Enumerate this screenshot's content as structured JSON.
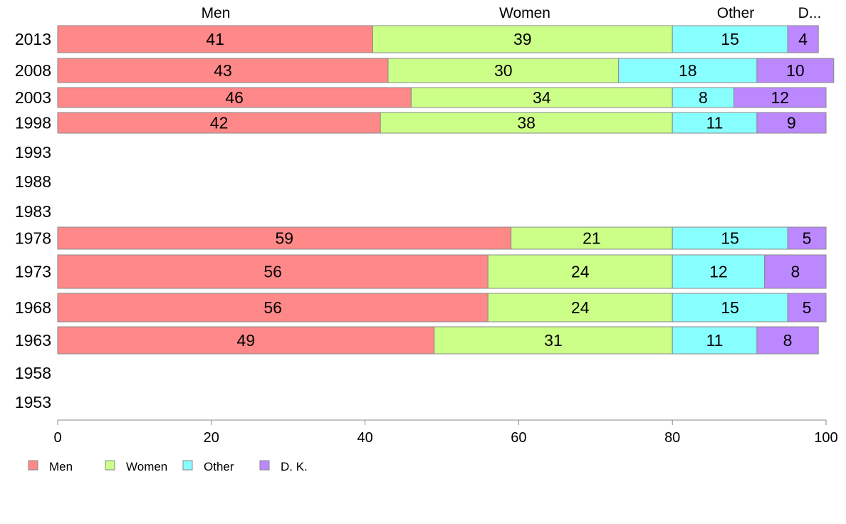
{
  "chart_data": {
    "type": "bar",
    "orientation": "horizontal",
    "stacked": true,
    "title": "",
    "xlabel": "",
    "ylabel": "",
    "xlim": [
      0,
      100
    ],
    "x_ticks": [
      0,
      20,
      40,
      60,
      80,
      100
    ],
    "grid": false,
    "legend_position": "bottom-left",
    "top_labels": [
      "Men",
      "Women",
      "Other",
      "D..."
    ],
    "categories": [
      "2013",
      "2008",
      "2003",
      "1998",
      "1993",
      "1988",
      "1983",
      "1978",
      "1973",
      "1968",
      "1963",
      "1958",
      "1953"
    ],
    "series": [
      {
        "name": "Men",
        "color": "#ff8888",
        "values": [
          41,
          43,
          46,
          42,
          null,
          null,
          null,
          59,
          56,
          56,
          49,
          null,
          null
        ]
      },
      {
        "name": "Women",
        "color": "#ccff88",
        "values": [
          39,
          30,
          34,
          38,
          null,
          null,
          null,
          21,
          24,
          24,
          31,
          null,
          null
        ]
      },
      {
        "name": "Other",
        "color": "#88ffff",
        "values": [
          15,
          18,
          8,
          11,
          null,
          null,
          null,
          15,
          12,
          15,
          11,
          null,
          null
        ]
      },
      {
        "name": "D. K.",
        "color": "#bb88ff",
        "values": [
          4,
          10,
          12,
          9,
          null,
          null,
          null,
          5,
          8,
          5,
          8,
          null,
          null
        ]
      }
    ]
  }
}
